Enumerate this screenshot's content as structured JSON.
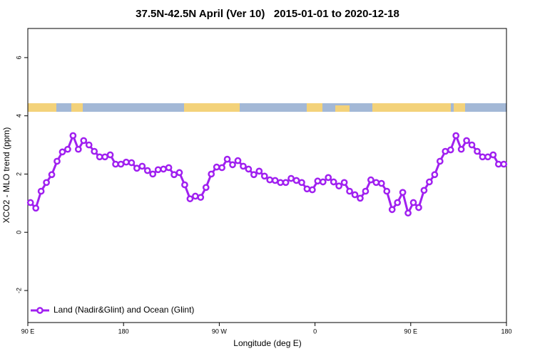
{
  "chart_data": {
    "type": "line",
    "title": "37.5N-42.5N April (Ver 10)   2015-01-01 to 2020-12-18",
    "x_label": "Longitude (deg E)",
    "y_label": "XCO2 - MLO trend (ppm)",
    "x": [
      92.5,
      97.5,
      102.5,
      107.5,
      112.5,
      117.5,
      122.5,
      127.5,
      132.5,
      137.5,
      142.5,
      147.5,
      152.5,
      157.5,
      162.5,
      167.5,
      172.5,
      177.5,
      182.5,
      187.5,
      192.5,
      197.5,
      202.5,
      207.5,
      212.5,
      217.5,
      222.5,
      227.5,
      232.5,
      237.5,
      242.5,
      247.5,
      252.5,
      257.5,
      262.5,
      267.5,
      272.5,
      277.5,
      282.5,
      287.5,
      292.5,
      297.5,
      302.5,
      307.5,
      312.5,
      317.5,
      322.5,
      327.5,
      332.5,
      337.5,
      342.5,
      347.5,
      352.5,
      357.5,
      362.5,
      367.5,
      372.5,
      377.5,
      382.5,
      387.5,
      392.5,
      397.5,
      402.5,
      407.5,
      412.5,
      417.5,
      422.5,
      427.5,
      432.5,
      437.5,
      442.5,
      447.5,
      452.5,
      457.5,
      462.5,
      467.5,
      472.5,
      477.5,
      482.5,
      487.5,
      492.5,
      497.5,
      502.5,
      507.5,
      512.5,
      517.5,
      522.5,
      527.5,
      532.5,
      537.5
    ],
    "series": [
      {
        "name": "Land (Nadir&Glint) and Ocean (Glint)",
        "color": "#a020f0",
        "values": [
          1.02,
          0.83,
          1.41,
          1.71,
          1.98,
          2.44,
          2.76,
          2.85,
          3.32,
          2.85,
          3.15,
          3.0,
          2.78,
          2.59,
          2.59,
          2.66,
          2.34,
          2.34,
          2.41,
          2.39,
          2.2,
          2.27,
          2.12,
          2.0,
          2.15,
          2.17,
          2.22,
          1.98,
          2.05,
          1.63,
          1.15,
          1.24,
          1.2,
          1.54,
          2.0,
          2.24,
          2.22,
          2.51,
          2.32,
          2.46,
          2.27,
          2.17,
          1.98,
          2.1,
          1.93,
          1.8,
          1.78,
          1.71,
          1.71,
          1.85,
          1.78,
          1.71,
          1.49,
          1.46,
          1.76,
          1.73,
          1.88,
          1.73,
          1.59,
          1.71,
          1.41,
          1.29,
          1.17,
          1.41,
          1.8,
          1.71,
          1.68,
          1.41,
          0.78,
          1.02,
          1.37,
          0.66,
          1.02,
          0.85,
          1.44,
          1.73,
          1.98,
          2.44,
          2.78,
          2.83,
          3.32,
          2.85,
          3.15,
          3.0,
          2.78,
          2.59,
          2.59,
          2.66,
          2.34,
          2.34
        ]
      }
    ],
    "xlim": [
      90,
      540
    ],
    "xticks": [
      {
        "value": 90,
        "label": "90 E"
      },
      180,
      {
        "value": 270,
        "label": "90 W"
      },
      {
        "value": 360,
        "label": "0"
      },
      {
        "value": 450,
        "label": "90 E"
      },
      {
        "value": 540,
        "label": "180"
      }
    ],
    "ylim": [
      -3.1,
      7
    ],
    "yticks": [
      -2,
      0,
      2,
      4,
      6
    ],
    "legend": "bottomleft"
  }
}
